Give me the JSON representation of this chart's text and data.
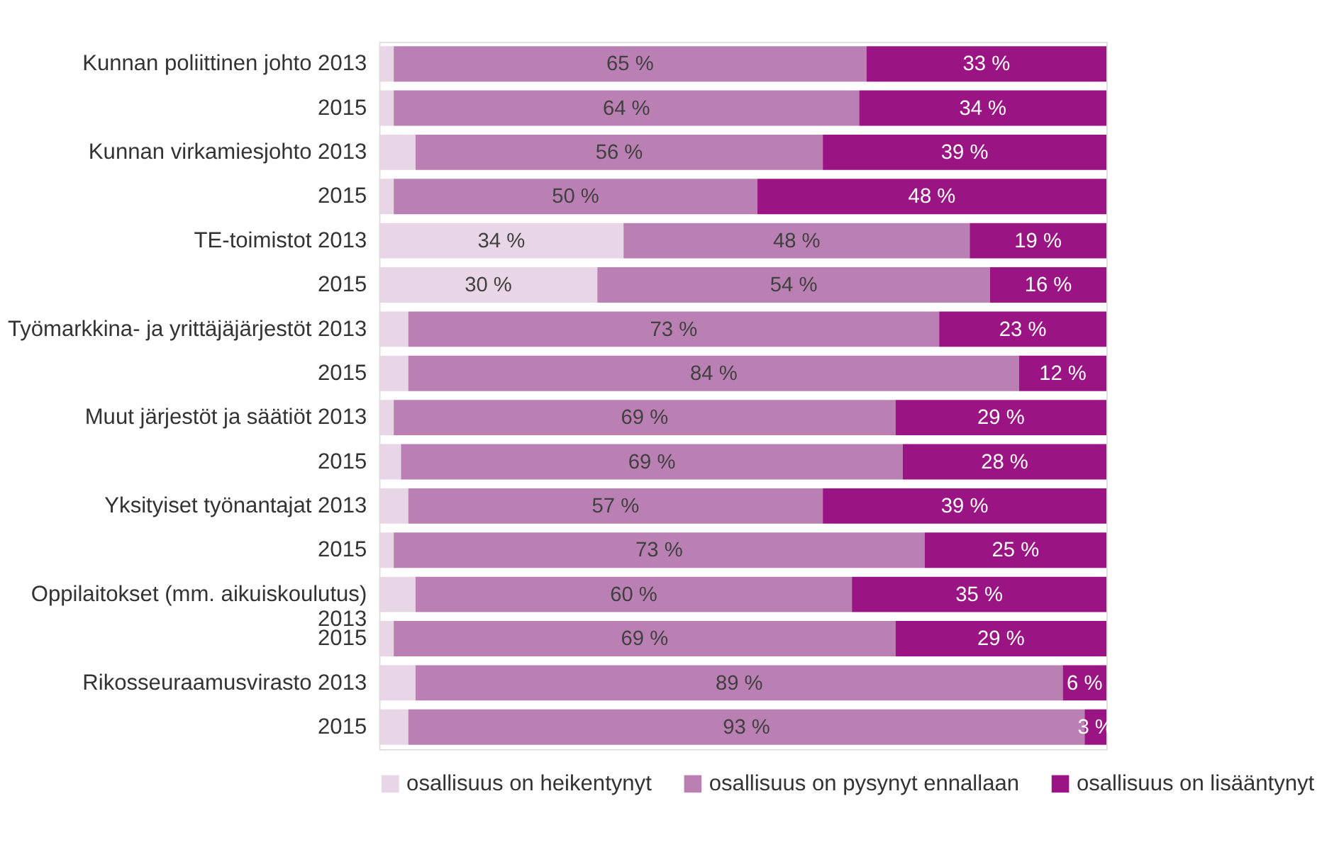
{
  "chart_data": {
    "type": "bar",
    "orientation": "horizontal",
    "stacked": true,
    "xlim": [
      0,
      100
    ],
    "tick_labels": "y",
    "legend": "bottom",
    "categories": [
      "Kunnan poliittinen johto 2013",
      "2015",
      "Kunnan virkamiesjohto 2013",
      "2015",
      "TE-toimistot 2013",
      "2015",
      "Työmarkkina- ja yrittäjäjärjestöt 2013",
      "2015",
      "Muut järjestöt ja säätiöt 2013",
      "2015",
      "Yksityiset työnantajat 2013",
      "2015",
      "Oppilaitokset (mm. aikuiskoulutus) 2013",
      "2015",
      "Rikosseuraamusvirasto 2013",
      "2015"
    ],
    "series": [
      {
        "name": "osallisuus on heikentynyt",
        "color": "#e8d5e6",
        "values": [
          2,
          2,
          5,
          2,
          33.6,
          30,
          4,
          4,
          2,
          3,
          4,
          2,
          5,
          2,
          5,
          4
        ],
        "value_labels": [
          null,
          null,
          null,
          null,
          "34 %",
          "30 %",
          null,
          null,
          null,
          null,
          null,
          null,
          null,
          null,
          null,
          null
        ]
      },
      {
        "name": "osallisuus on pysynyt ennallaan",
        "color": "#bb80b3",
        "values": [
          65,
          64,
          56,
          50,
          47.6,
          54,
          73,
          84,
          69,
          69,
          57,
          73,
          60,
          69,
          89,
          93
        ],
        "value_labels": [
          "65 %",
          "64 %",
          "56 %",
          "50 %",
          "48 %",
          "54 %",
          "73 %",
          "84 %",
          "69 %",
          "69 %",
          "57 %",
          "73 %",
          "60 %",
          "69 %",
          "89 %",
          "93 %"
        ]
      },
      {
        "name": "osallisuus on lisääntynyt",
        "color": "#9b1483",
        "values": [
          33,
          34,
          39,
          48,
          18.8,
          16,
          23,
          12,
          29,
          28,
          39,
          25,
          35,
          29,
          6,
          3
        ],
        "value_labels": [
          "33 %",
          "34 %",
          "39 %",
          "48 %",
          "19 %",
          "16 %",
          "23 %",
          "12 %",
          "29 %",
          "28 %",
          "39 %",
          "25 %",
          "35 %",
          "29 %",
          "6 %",
          "3 %"
        ]
      }
    ]
  }
}
